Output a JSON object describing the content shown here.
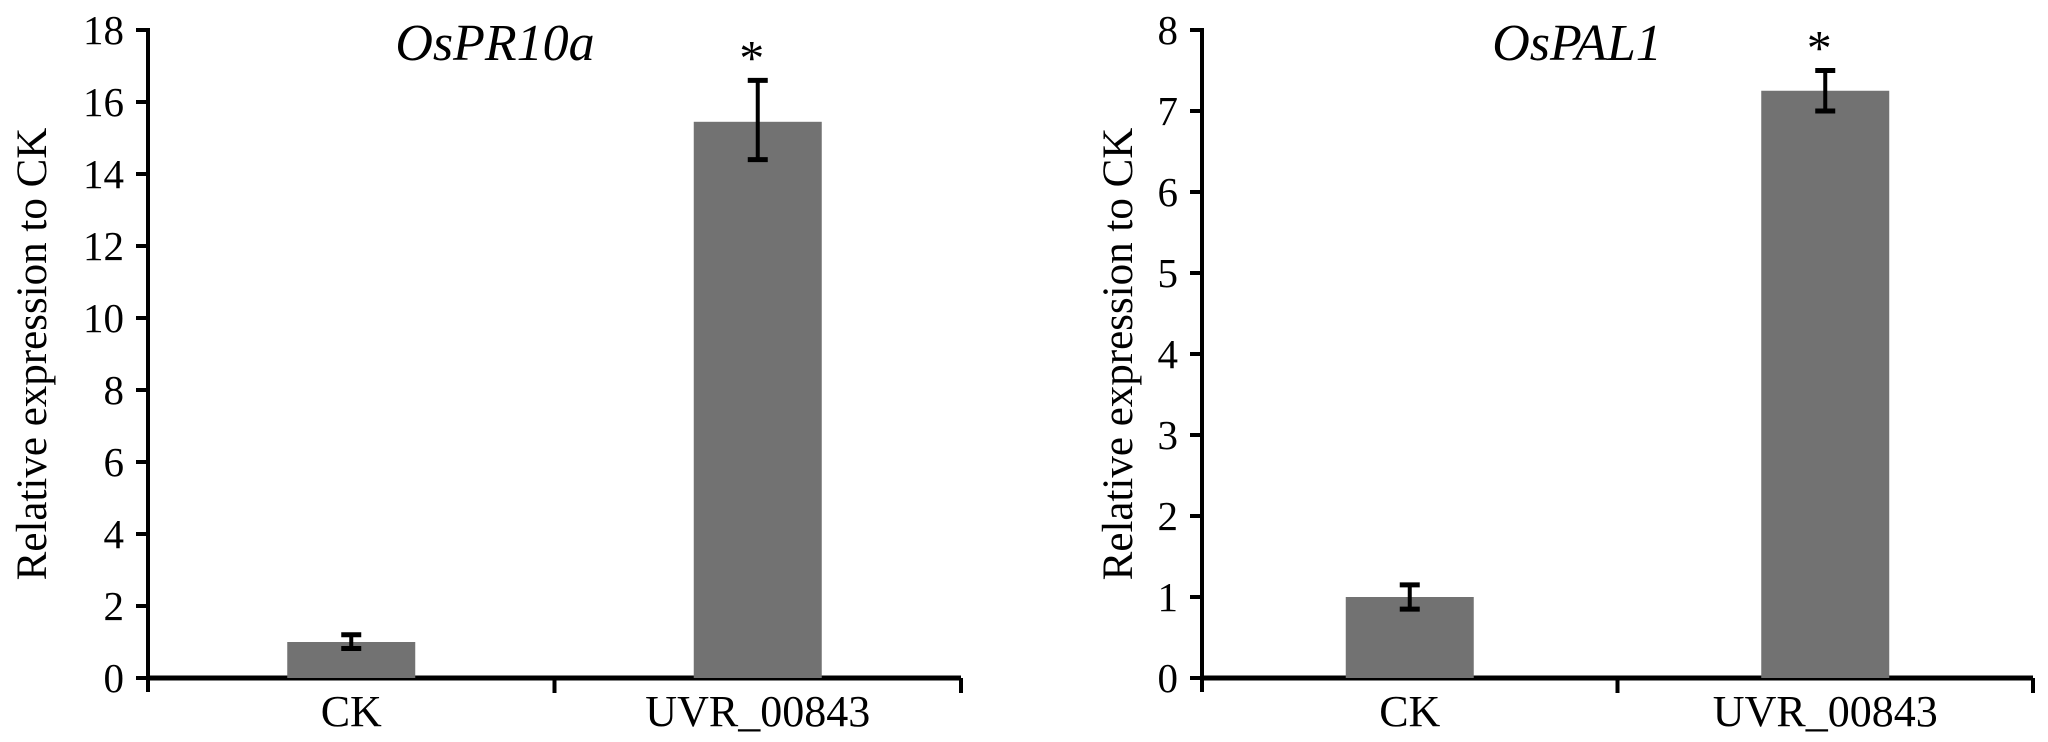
{
  "colors": {
    "bar": "#727272",
    "axis": "#000000",
    "error_bar": "#000000",
    "text": "#000000",
    "background": "#ffffff"
  },
  "chart_data": [
    {
      "type": "bar",
      "title": "OsPR10a",
      "title_style": "italic",
      "ylabel": "Relative expression to CK",
      "xlabel": "",
      "categories": [
        "CK",
        "UVR_00843"
      ],
      "values": [
        1.0,
        15.45
      ],
      "error_low": [
        0.82,
        14.4
      ],
      "error_high": [
        1.2,
        16.6
      ],
      "significance": [
        null,
        "*"
      ],
      "ylim": [
        0,
        18
      ],
      "ytick_step": 2,
      "ytick_labels": [
        "0",
        "2",
        "4",
        "6",
        "8",
        "10",
        "12",
        "14",
        "16",
        "18"
      ],
      "grid": false,
      "legend_position": "none",
      "bar_color": "#727272"
    },
    {
      "type": "bar",
      "title": "OsPAL1",
      "title_style": "italic",
      "ylabel": "Relative expression to CK",
      "xlabel": "",
      "categories": [
        "CK",
        "UVR_00843"
      ],
      "values": [
        1.0,
        7.25
      ],
      "error_low": [
        0.85,
        7.0
      ],
      "error_high": [
        1.15,
        7.5
      ],
      "significance": [
        null,
        "*"
      ],
      "ylim": [
        0,
        8
      ],
      "ytick_step": 1,
      "ytick_labels": [
        "0",
        "1",
        "2",
        "3",
        "4",
        "5",
        "6",
        "7",
        "8"
      ],
      "grid": false,
      "legend_position": "none",
      "bar_color": "#727272"
    }
  ]
}
